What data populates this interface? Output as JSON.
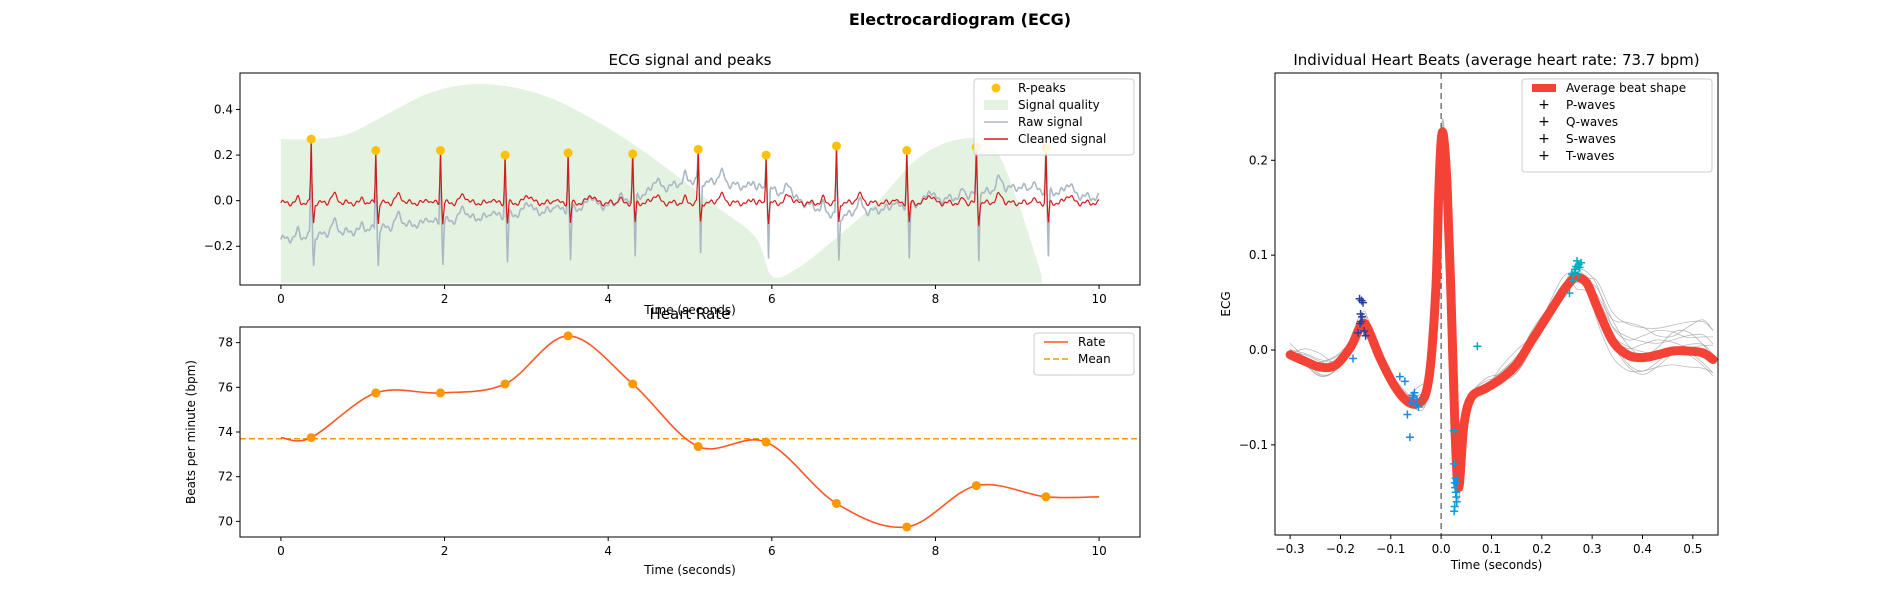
{
  "figure_title": "Electrocardiogram (ECG)",
  "colors": {
    "raw": "#aab8c4",
    "cleaned": "#d01c1c",
    "peaks": "#ffc107",
    "quality": "#e4f2e1",
    "rate": "#ff5722",
    "mean": "#ff9800",
    "avg_beat": "#f44336",
    "p": "#2a3f9e",
    "q": "#1e88e5",
    "s": "#039be5",
    "t": "#00acc1",
    "beat_lines": "#9e9e9e"
  },
  "chart_data": [
    {
      "id": "ecg",
      "type": "line",
      "title": "ECG signal and peaks",
      "xlabel": "Time (seconds)",
      "ylabel": "",
      "xlim": [
        -0.5,
        10.5
      ],
      "ylim": [
        -0.37,
        0.56
      ],
      "xticks": [
        0,
        2,
        4,
        6,
        8,
        10
      ],
      "xtick_labels": [
        "0",
        "2",
        "4",
        "6",
        "8",
        "10"
      ],
      "yticks": [
        -0.2,
        0.0,
        0.2,
        0.4
      ],
      "ytick_labels": [
        "−0.2",
        "0.0",
        "0.2",
        "0.4"
      ],
      "legend_position": "top-right",
      "legend": [
        "R-peaks",
        "Signal quality",
        "Raw signal",
        "Cleaned signal"
      ],
      "r_peaks": {
        "x": [
          0.37,
          1.16,
          1.95,
          2.74,
          3.51,
          4.3,
          5.1,
          5.93,
          6.79,
          7.65,
          8.5,
          9.35
        ],
        "y": [
          0.27,
          0.22,
          0.22,
          0.2,
          0.21,
          0.205,
          0.225,
          0.2,
          0.24,
          0.22,
          0.235,
          0.23
        ]
      },
      "signal_quality": {
        "x": [
          0,
          0.35,
          0.8,
          1.3,
          1.8,
          2.3,
          2.8,
          3.3,
          3.8,
          4.3,
          4.8,
          5.3,
          5.8,
          6.0,
          6.3,
          6.8,
          7.3,
          7.8,
          8.3,
          8.7,
          9.0,
          9.3
        ],
        "y": [
          0.27,
          0.27,
          0.29,
          0.38,
          0.47,
          0.51,
          0.5,
          0.45,
          0.36,
          0.25,
          0.12,
          -0.02,
          -0.16,
          -0.33,
          -0.3,
          -0.16,
          0.0,
          0.19,
          0.27,
          0.24,
          0.0,
          -0.33
        ]
      },
      "series": [
        {
          "name": "Raw signal",
          "baseline": [
            [
              0,
              -0.17
            ],
            [
              2,
              -0.09
            ],
            [
              4,
              -0.02
            ],
            [
              5,
              0.09
            ],
            [
              6,
              0.05
            ],
            [
              6.8,
              -0.07
            ],
            [
              8,
              0.0
            ],
            [
              9,
              0.06
            ],
            [
              10,
              0.01
            ]
          ],
          "trough_y": -0.32
        },
        {
          "name": "Cleaned signal",
          "baseline": [
            [
              0,
              -0.01
            ],
            [
              10,
              -0.01
            ]
          ],
          "trough_y": -0.12
        }
      ]
    },
    {
      "id": "rate",
      "type": "line",
      "title": "Heart Rate",
      "xlabel": "Time (seconds)",
      "ylabel": "Beats per minute (bpm)",
      "xlim": [
        -0.5,
        10.5
      ],
      "ylim": [
        69.3,
        78.7
      ],
      "xticks": [
        0,
        2,
        4,
        6,
        8,
        10
      ],
      "xtick_labels": [
        "0",
        "2",
        "4",
        "6",
        "8",
        "10"
      ],
      "yticks": [
        70,
        72,
        74,
        76,
        78
      ],
      "ytick_labels": [
        "70",
        "72",
        "74",
        "76",
        "78"
      ],
      "legend_position": "top-right",
      "legend": [
        "Rate",
        "Mean"
      ],
      "mean": 73.7,
      "series": [
        {
          "name": "Rate",
          "x": [
            0.37,
            1.16,
            1.95,
            2.74,
            3.51,
            4.3,
            5.1,
            5.93,
            6.79,
            7.65,
            8.5,
            9.35
          ],
          "y": [
            73.75,
            75.75,
            75.75,
            76.15,
            78.3,
            76.15,
            73.35,
            73.55,
            70.8,
            69.75,
            71.6,
            71.1
          ]
        }
      ],
      "start": [
        0,
        73.75
      ],
      "end": [
        10,
        71.1
      ]
    },
    {
      "id": "beats",
      "type": "line",
      "title": "Individual Heart Beats (average heart rate: 73.7 bpm)",
      "xlabel": "Time (seconds)",
      "ylabel": "ECG",
      "xlim": [
        -0.33,
        0.55
      ],
      "ylim": [
        -0.195,
        0.292
      ],
      "xticks": [
        -0.3,
        -0.2,
        -0.1,
        0.0,
        0.1,
        0.2,
        0.3,
        0.4,
        0.5
      ],
      "xtick_labels": [
        "−0.3",
        "−0.2",
        "−0.1",
        "0.0",
        "0.1",
        "0.2",
        "0.3",
        "0.4",
        "0.5"
      ],
      "yticks": [
        -0.1,
        0.0,
        0.1,
        0.2
      ],
      "ytick_labels": [
        "−0.1",
        "0.0",
        "0.1",
        "0.2"
      ],
      "legend_position": "top-right",
      "legend": [
        "Average beat shape",
        "P-waves",
        "Q-waves",
        "S-waves",
        "T-waves"
      ],
      "average_beat": {
        "x": [
          -0.3,
          -0.27,
          -0.24,
          -0.21,
          -0.18,
          -0.165,
          -0.155,
          -0.145,
          -0.12,
          -0.09,
          -0.065,
          -0.045,
          -0.03,
          -0.02,
          -0.01,
          -0.005,
          0.0,
          0.005,
          0.012,
          0.02,
          0.028,
          0.035,
          0.045,
          0.06,
          0.09,
          0.12,
          0.15,
          0.18,
          0.21,
          0.24,
          0.26,
          0.27,
          0.29,
          0.31,
          0.34,
          0.37,
          0.4,
          0.43,
          0.46,
          0.49,
          0.52,
          0.54
        ],
        "y": [
          -0.005,
          -0.012,
          -0.018,
          -0.016,
          0.003,
          0.02,
          0.028,
          0.022,
          -0.01,
          -0.04,
          -0.055,
          -0.056,
          -0.045,
          -0.01,
          0.07,
          0.16,
          0.22,
          0.225,
          0.17,
          0.05,
          -0.09,
          -0.145,
          -0.08,
          -0.05,
          -0.04,
          -0.03,
          -0.015,
          0.01,
          0.035,
          0.06,
          0.074,
          0.077,
          0.07,
          0.045,
          0.01,
          -0.005,
          -0.008,
          -0.005,
          -0.001,
          -0.001,
          -0.003,
          -0.01
        ]
      },
      "p_waves": {
        "x": [
          -0.162,
          -0.158,
          -0.155,
          -0.16,
          -0.157,
          -0.161,
          -0.153,
          -0.165,
          -0.15,
          -0.159
        ],
        "y": [
          0.054,
          0.052,
          0.05,
          0.038,
          0.035,
          0.028,
          0.02,
          0.018,
          0.015,
          0.03
        ]
      },
      "q_waves": {
        "x": [
          -0.175,
          -0.082,
          -0.072,
          -0.067,
          -0.062,
          -0.057,
          -0.053,
          -0.05,
          -0.048,
          -0.045,
          -0.06,
          -0.055
        ],
        "y": [
          -0.009,
          -0.028,
          -0.033,
          -0.068,
          -0.092,
          -0.048,
          -0.045,
          -0.058,
          -0.052,
          -0.06,
          -0.055,
          -0.05
        ]
      },
      "s_waves": {
        "x": [
          0.025,
          0.026,
          0.027,
          0.028,
          0.029,
          0.03,
          0.031,
          0.027,
          0.026,
          0.03,
          0.029
        ],
        "y": [
          -0.085,
          -0.12,
          -0.14,
          -0.145,
          -0.15,
          -0.155,
          -0.16,
          -0.165,
          -0.17,
          -0.14,
          -0.135
        ]
      },
      "t_waves": {
        "x": [
          0.072,
          0.255,
          0.262,
          0.265,
          0.268,
          0.27,
          0.273,
          0.275,
          0.278,
          0.26,
          0.266,
          0.272
        ],
        "y": [
          0.004,
          0.06,
          0.073,
          0.082,
          0.088,
          0.094,
          0.09,
          0.087,
          0.092,
          0.08,
          0.085,
          0.079
        ]
      }
    }
  ]
}
